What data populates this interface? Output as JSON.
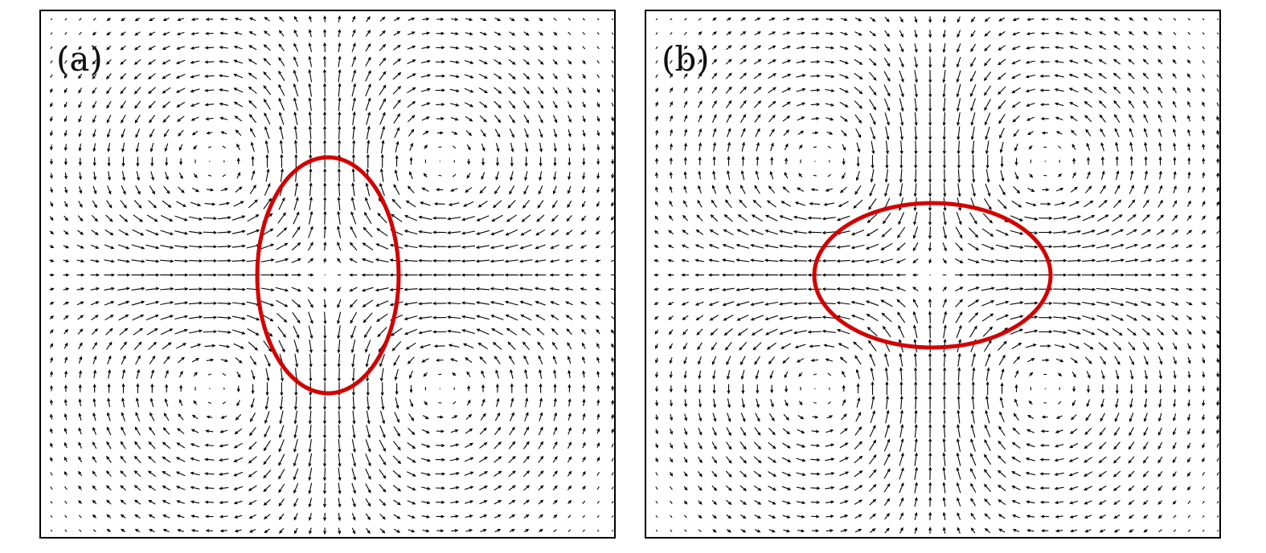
{
  "chart_data": [
    {
      "type": "quiver",
      "panel_label": "(a)",
      "interface": {
        "shape": "ellipse",
        "orientation": "vertical",
        "color": "#d40000"
      },
      "vector_color": "#000000",
      "grid": false
    },
    {
      "type": "quiver",
      "panel_label": "(b)",
      "interface": {
        "shape": "ellipse",
        "orientation": "horizontal",
        "color": "#d40000"
      },
      "vector_color": "#000000",
      "grid": false
    }
  ]
}
